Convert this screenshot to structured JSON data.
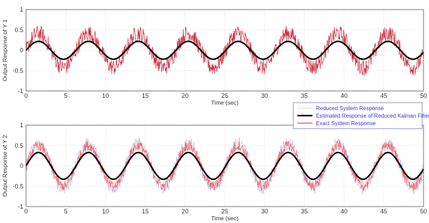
{
  "chart_data": [
    {
      "type": "line",
      "xlabel": "Time (sec)",
      "ylabel": "Output Response of Y 1",
      "xlim": [
        0,
        50
      ],
      "ylim": [
        -1,
        1
      ],
      "x_ticks": [
        0,
        5,
        10,
        15,
        20,
        25,
        30,
        35,
        40,
        45,
        50
      ],
      "y_ticks": [
        -1,
        -0.5,
        0,
        0.5,
        1
      ],
      "grid": true,
      "series": [
        {
          "name": "Exact System Response",
          "color": "#cc2233",
          "description_values": {
            "amplitude": 0.42,
            "period": 6.28,
            "noise": 0.2
          }
        },
        {
          "name": "Reduced System Response",
          "color": "#c8c8ee",
          "description_values": {
            "amplitude": 0.35,
            "period": 6.28,
            "noise": 0.05
          }
        },
        {
          "name": "Estimated Response of Reduced Kalman Filter",
          "color": "#000000",
          "description_values": {
            "amplitude": 0.22,
            "period": 6.28,
            "offset": 0.0
          }
        }
      ]
    },
    {
      "type": "line",
      "xlabel": "Time (sec)",
      "ylabel": "Output Response of Y 2",
      "xlim": [
        0,
        50
      ],
      "ylim": [
        -1,
        1
      ],
      "x_ticks": [
        0,
        5,
        10,
        15,
        20,
        25,
        30,
        35,
        40,
        45,
        50
      ],
      "y_ticks": [
        -1,
        -0.5,
        0,
        0.5,
        1
      ],
      "grid": true,
      "legend": {
        "placement": "top-right",
        "entries": [
          {
            "label": "Reduced System Response",
            "color": "#b0b0e0",
            "style": "dotted"
          },
          {
            "label": "Estimated Response of Reduced Kalman Filter",
            "color": "#000000",
            "style": "solid"
          },
          {
            "label": "Exact System Response",
            "color": "#cc2233",
            "style": "solid"
          }
        ]
      },
      "series": [
        {
          "name": "Exact System Response",
          "color": "#ff5555",
          "description_values": {
            "amplitude": 0.5,
            "period": 6.28,
            "noise": 0.12
          }
        },
        {
          "name": "Reduced System Response",
          "color": "#8888cc",
          "description_values": {
            "amplitude": 0.52,
            "period": 6.28,
            "noise": 0.18
          }
        },
        {
          "name": "Estimated Response of Reduced Kalman Filter",
          "color": "#000000",
          "description_values": {
            "amplitude": 0.33,
            "period": 6.28,
            "offset": 0.0
          }
        }
      ]
    }
  ]
}
